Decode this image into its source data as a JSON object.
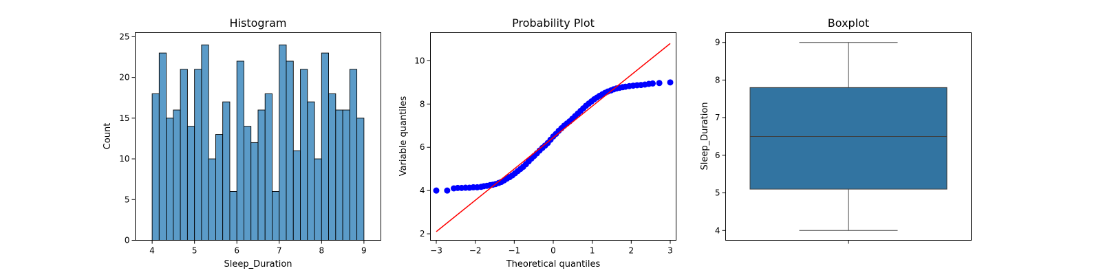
{
  "chart_data": [
    {
      "type": "bar",
      "title": "Histogram",
      "xlabel": "Sleep_Duration",
      "ylabel": "Count",
      "xlim": [
        3.6,
        9.4
      ],
      "ylim": [
        0,
        25.5
      ],
      "xticks": [
        4,
        5,
        6,
        7,
        8,
        9
      ],
      "yticks": [
        0,
        5,
        10,
        15,
        20,
        25
      ],
      "bar_color": "#5b9bc8",
      "bins": [
        {
          "x0": 4.0,
          "x1": 4.166,
          "count": 18
        },
        {
          "x0": 4.166,
          "x1": 4.333,
          "count": 23
        },
        {
          "x0": 4.333,
          "x1": 4.5,
          "count": 15
        },
        {
          "x0": 4.5,
          "x1": 4.666,
          "count": 16
        },
        {
          "x0": 4.666,
          "x1": 4.833,
          "count": 21
        },
        {
          "x0": 4.833,
          "x1": 5.0,
          "count": 14
        },
        {
          "x0": 5.0,
          "x1": 5.166,
          "count": 21
        },
        {
          "x0": 5.166,
          "x1": 5.333,
          "count": 24
        },
        {
          "x0": 5.333,
          "x1": 5.5,
          "count": 10
        },
        {
          "x0": 5.5,
          "x1": 5.666,
          "count": 13
        },
        {
          "x0": 5.666,
          "x1": 5.833,
          "count": 17
        },
        {
          "x0": 5.833,
          "x1": 6.0,
          "count": 6
        },
        {
          "x0": 6.0,
          "x1": 6.166,
          "count": 22
        },
        {
          "x0": 6.166,
          "x1": 6.333,
          "count": 14
        },
        {
          "x0": 6.333,
          "x1": 6.5,
          "count": 12
        },
        {
          "x0": 6.5,
          "x1": 6.666,
          "count": 16
        },
        {
          "x0": 6.666,
          "x1": 6.833,
          "count": 18
        },
        {
          "x0": 6.833,
          "x1": 7.0,
          "count": 6
        },
        {
          "x0": 7.0,
          "x1": 7.166,
          "count": 24
        },
        {
          "x0": 7.166,
          "x1": 7.333,
          "count": 22
        },
        {
          "x0": 7.333,
          "x1": 7.5,
          "count": 11
        },
        {
          "x0": 7.5,
          "x1": 7.666,
          "count": 21
        },
        {
          "x0": 7.666,
          "x1": 7.833,
          "count": 17
        },
        {
          "x0": 7.833,
          "x1": 8.0,
          "count": 10
        },
        {
          "x0": 8.0,
          "x1": 8.166,
          "count": 23
        },
        {
          "x0": 8.166,
          "x1": 8.333,
          "count": 18
        },
        {
          "x0": 8.333,
          "x1": 8.5,
          "count": 16
        },
        {
          "x0": 8.5,
          "x1": 8.666,
          "count": 16
        },
        {
          "x0": 8.666,
          "x1": 8.833,
          "count": 21
        },
        {
          "x0": 8.833,
          "x1": 9.0,
          "count": 15
        }
      ]
    },
    {
      "type": "scatter",
      "title": "Probability Plot",
      "xlabel": "Theoretical quantiles",
      "ylabel": "Variable quantiles",
      "xlim": [
        -3.15,
        3.15
      ],
      "ylim": [
        1.7,
        11.3
      ],
      "xticks": [
        -3,
        -2,
        -1,
        0,
        1,
        2,
        3
      ],
      "yticks": [
        2,
        4,
        6,
        8,
        10
      ],
      "point_color": "#0000ff",
      "line_color": "#ff0000",
      "fit_line": {
        "x": [
          -3.0,
          3.0
        ],
        "y": [
          2.1,
          10.8
        ]
      },
      "points": [
        [
          -3.0,
          4.0
        ],
        [
          -2.72,
          4.0
        ],
        [
          -2.55,
          4.1
        ],
        [
          -2.45,
          4.12
        ],
        [
          -2.35,
          4.12
        ],
        [
          -2.25,
          4.13
        ],
        [
          -2.15,
          4.13
        ],
        [
          -2.05,
          4.15
        ],
        [
          -1.95,
          4.15
        ],
        [
          -1.85,
          4.17
        ],
        [
          -1.78,
          4.2
        ],
        [
          -1.7,
          4.22
        ],
        [
          -1.62,
          4.25
        ],
        [
          -1.55,
          4.27
        ],
        [
          -1.48,
          4.3
        ],
        [
          -1.4,
          4.35
        ],
        [
          -1.33,
          4.4
        ],
        [
          -1.26,
          4.47
        ],
        [
          -1.19,
          4.55
        ],
        [
          -1.12,
          4.62
        ],
        [
          -1.05,
          4.7
        ],
        [
          -0.98,
          4.8
        ],
        [
          -0.91,
          4.9
        ],
        [
          -0.84,
          5.0
        ],
        [
          -0.77,
          5.1
        ],
        [
          -0.7,
          5.22
        ],
        [
          -0.63,
          5.35
        ],
        [
          -0.56,
          5.48
        ],
        [
          -0.49,
          5.6
        ],
        [
          -0.42,
          5.72
        ],
        [
          -0.35,
          5.85
        ],
        [
          -0.28,
          5.97
        ],
        [
          -0.21,
          6.08
        ],
        [
          -0.14,
          6.2
        ],
        [
          -0.07,
          6.35
        ],
        [
          0.0,
          6.5
        ],
        [
          0.07,
          6.62
        ],
        [
          0.14,
          6.76
        ],
        [
          0.21,
          6.88
        ],
        [
          0.28,
          7.0
        ],
        [
          0.35,
          7.1
        ],
        [
          0.42,
          7.2
        ],
        [
          0.49,
          7.32
        ],
        [
          0.56,
          7.44
        ],
        [
          0.63,
          7.56
        ],
        [
          0.7,
          7.68
        ],
        [
          0.77,
          7.8
        ],
        [
          0.84,
          7.92
        ],
        [
          0.91,
          8.02
        ],
        [
          0.98,
          8.12
        ],
        [
          1.05,
          8.22
        ],
        [
          1.12,
          8.3
        ],
        [
          1.19,
          8.38
        ],
        [
          1.26,
          8.45
        ],
        [
          1.33,
          8.52
        ],
        [
          1.4,
          8.58
        ],
        [
          1.48,
          8.63
        ],
        [
          1.55,
          8.68
        ],
        [
          1.62,
          8.72
        ],
        [
          1.7,
          8.75
        ],
        [
          1.78,
          8.78
        ],
        [
          1.85,
          8.8
        ],
        [
          1.95,
          8.83
        ],
        [
          2.05,
          8.85
        ],
        [
          2.15,
          8.87
        ],
        [
          2.25,
          8.88
        ],
        [
          2.35,
          8.9
        ],
        [
          2.45,
          8.93
        ],
        [
          2.55,
          8.95
        ],
        [
          2.72,
          8.97
        ],
        [
          3.0,
          9.0
        ]
      ]
    },
    {
      "type": "box",
      "title": "Boxplot",
      "xlabel": "",
      "ylabel": "Sleep_Duration",
      "ylim": [
        3.74,
        9.26
      ],
      "yticks": [
        4,
        5,
        6,
        7,
        8,
        9
      ],
      "box_color": "#3274a1",
      "min": 4.0,
      "q1": 5.1,
      "median": 6.5,
      "q3": 7.8,
      "max": 9.0
    }
  ]
}
